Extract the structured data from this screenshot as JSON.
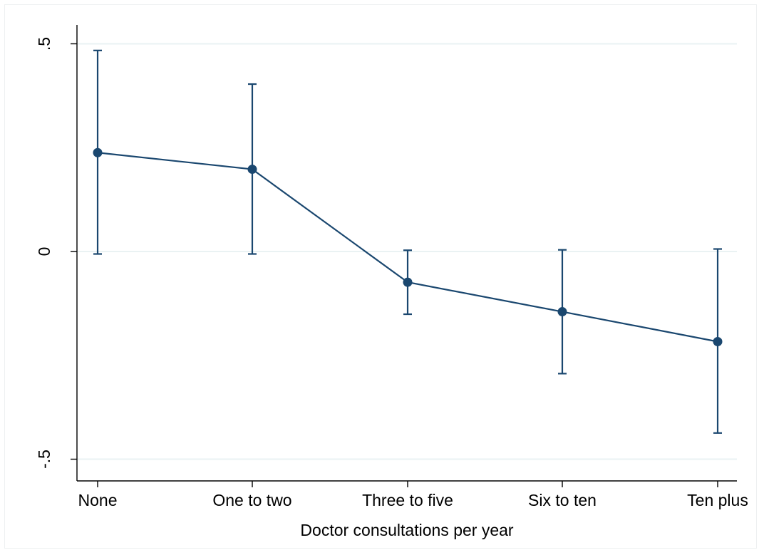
{
  "chart_data": {
    "type": "line",
    "xlabel": "Doctor consultations per year",
    "ylabel": "",
    "categories": [
      "None",
      "One to two",
      "Three to five",
      "Six to ten",
      "Ten plus"
    ],
    "y_ticks": [
      {
        "value": -0.5,
        "label": "-.5"
      },
      {
        "value": 0,
        "label": "0"
      },
      {
        "value": 0.5,
        "label": ".5"
      }
    ],
    "ylim": [
      -0.57,
      0.55
    ],
    "grid": true,
    "series": [
      {
        "values": [
          0.238,
          0.198,
          -0.074,
          -0.145,
          -0.217
        ],
        "ci_lower": [
          -0.006,
          -0.006,
          -0.151,
          -0.294,
          -0.437
        ],
        "ci_upper": [
          0.484,
          0.403,
          0.003,
          0.004,
          0.006
        ]
      }
    ],
    "colors": {
      "series": "#1a476f",
      "grid": "#eaf2f3",
      "axis": "#000000"
    }
  }
}
